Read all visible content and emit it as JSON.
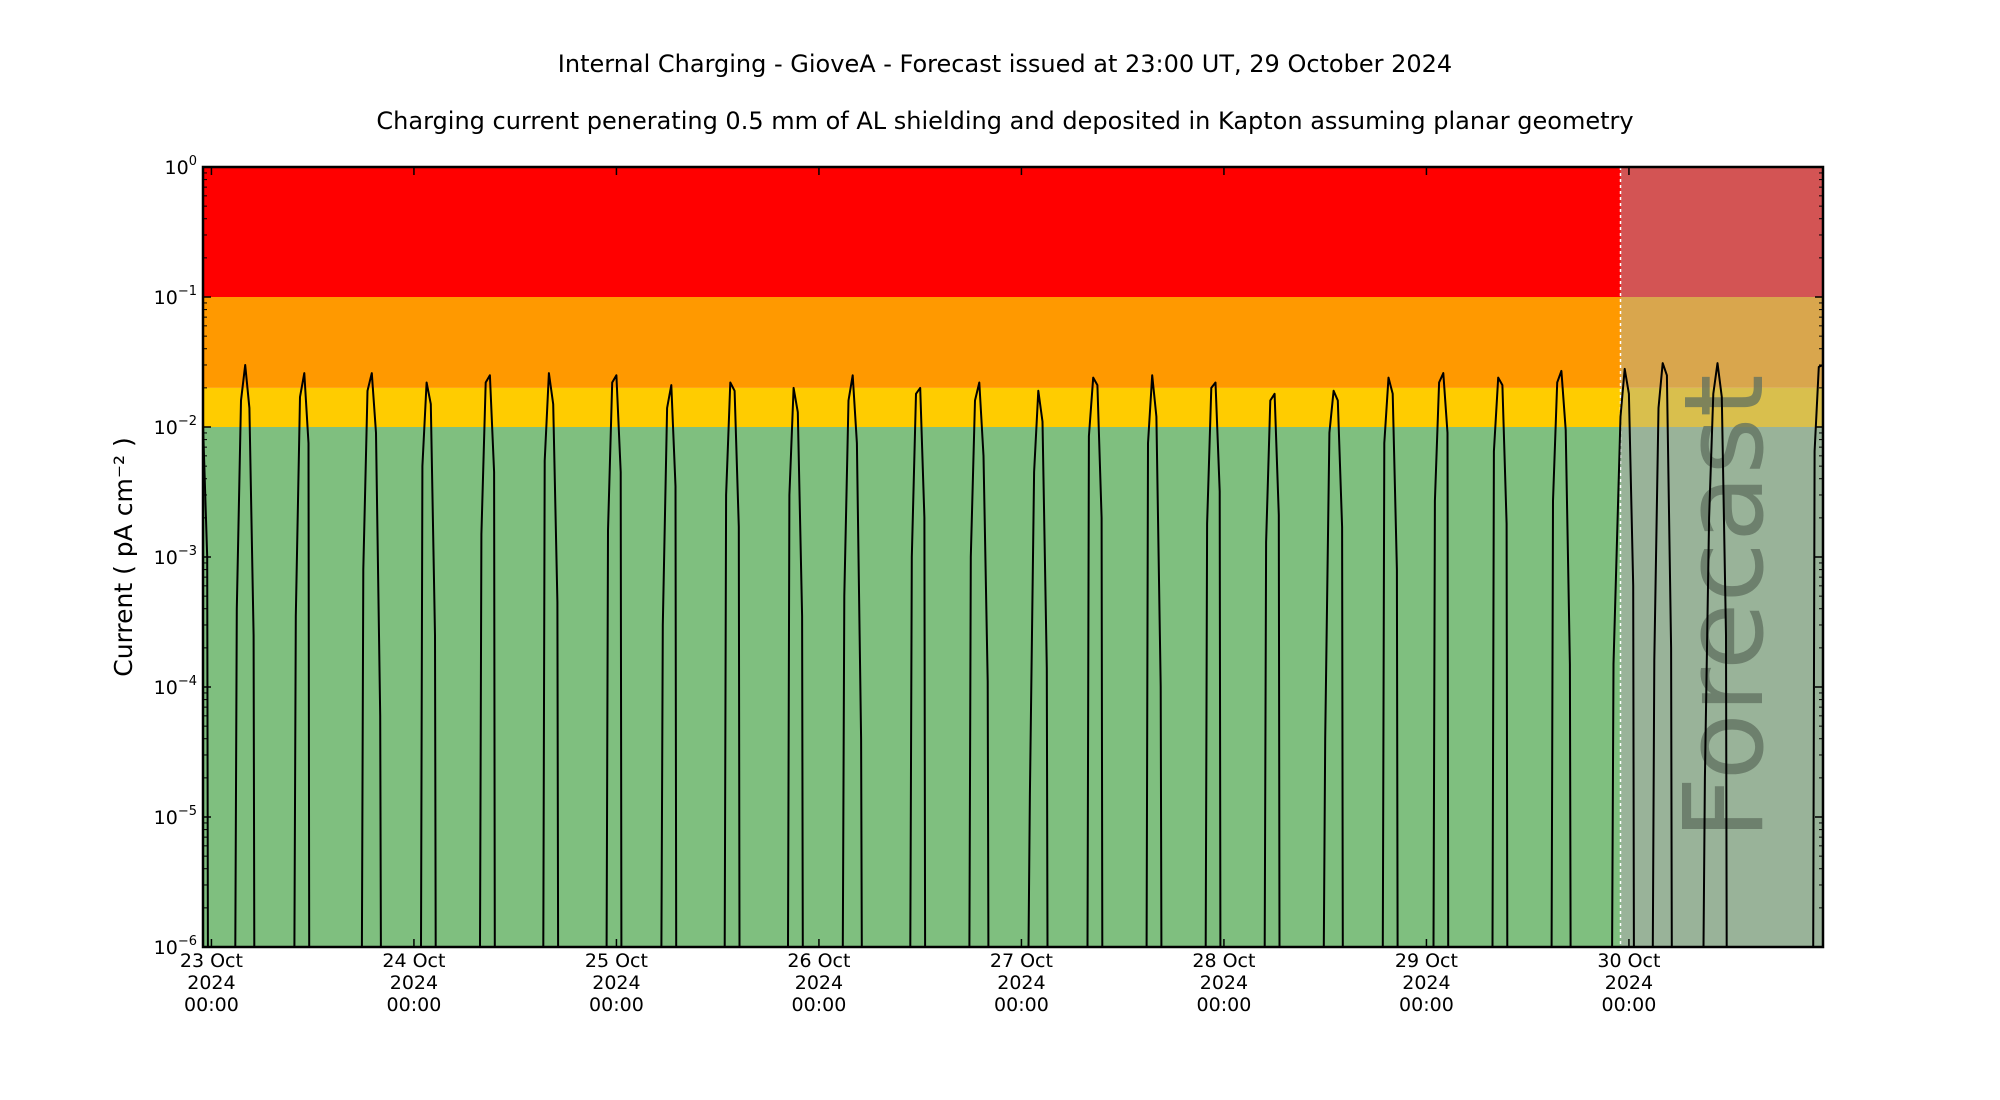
{
  "chart_data": {
    "type": "line",
    "title": "Internal Charging - GioveA - Forecast issued at 23:00 UT, 29 October 2024",
    "subtitle": "Charging current penerating 0.5 mm of AL shielding and deposited in Kapton assuming planar geometry",
    "ylabel": "Current ( pA cm⁻² )",
    "xlabel": "",
    "yscale": "log",
    "ylim": [
      1e-06,
      1
    ],
    "xlim": [
      "2024-10-22T23:00",
      "2024-10-30T23:00"
    ],
    "forecast_start": "2024-10-29T23:00",
    "forecast_text": "Forecast",
    "grid": false,
    "legend": "none",
    "y_ticks": [
      {
        "value": 1e-06,
        "mant": "10",
        "exp": "−6"
      },
      {
        "value": 1e-05,
        "mant": "10",
        "exp": "−5"
      },
      {
        "value": 0.0001,
        "mant": "10",
        "exp": "−4"
      },
      {
        "value": 0.001,
        "mant": "10",
        "exp": "−3"
      },
      {
        "value": 0.01,
        "mant": "10",
        "exp": "−2"
      },
      {
        "value": 0.1,
        "mant": "10",
        "exp": "−1"
      },
      {
        "value": 1,
        "mant": "10",
        "exp": "0"
      }
    ],
    "x_ticks": [
      {
        "at": "2024-10-23T00:00",
        "lines": [
          "23 Oct",
          "2024",
          "00:00"
        ]
      },
      {
        "at": "2024-10-24T00:00",
        "lines": [
          "24 Oct",
          "2024",
          "00:00"
        ]
      },
      {
        "at": "2024-10-25T00:00",
        "lines": [
          "25 Oct",
          "2024",
          "00:00"
        ]
      },
      {
        "at": "2024-10-26T00:00",
        "lines": [
          "26 Oct",
          "2024",
          "00:00"
        ]
      },
      {
        "at": "2024-10-27T00:00",
        "lines": [
          "27 Oct",
          "2024",
          "00:00"
        ]
      },
      {
        "at": "2024-10-28T00:00",
        "lines": [
          "28 Oct",
          "2024",
          "00:00"
        ]
      },
      {
        "at": "2024-10-29T00:00",
        "lines": [
          "29 Oct",
          "2024",
          "00:00"
        ]
      },
      {
        "at": "2024-10-30T00:00",
        "lines": [
          "30 Oct",
          "2024",
          "00:00"
        ]
      }
    ],
    "bands": [
      {
        "from": 1e-06,
        "to": 0.01,
        "color": "#7fbf7f",
        "forecast_color": "#99b399"
      },
      {
        "from": 0.01,
        "to": 0.02,
        "color": "#ffcc00",
        "forecast_color": "#d9bf4d"
      },
      {
        "from": 0.02,
        "to": 0.1,
        "color": "#ff9900",
        "forecast_color": "#d9a64d"
      },
      {
        "from": 0.1,
        "to": 1,
        "color": "#ff0000",
        "forecast_color": "#d35454"
      }
    ],
    "series": [
      {
        "color": "#000000",
        "points": [
          [
            "2024-10-22T23:00",
            0.0105
          ],
          [
            "2024-10-22T23:30",
            0.001
          ],
          [
            "2024-10-22T23:35",
            1e-06
          ],
          [
            "2024-10-23T02:50",
            1e-06
          ],
          [
            "2024-10-23T03:00",
            0.0004
          ],
          [
            "2024-10-23T03:30",
            0.016
          ],
          [
            "2024-10-23T04:00",
            0.03
          ],
          [
            "2024-10-23T04:30",
            0.014
          ],
          [
            "2024-10-23T05:00",
            0.00025
          ],
          [
            "2024-10-23T05:05",
            1e-06
          ],
          [
            "2024-10-23T09:50",
            1e-06
          ],
          [
            "2024-10-23T10:00",
            0.00035
          ],
          [
            "2024-10-23T10:30",
            0.017
          ],
          [
            "2024-10-23T11:00",
            0.026
          ],
          [
            "2024-10-23T11:30",
            0.0075
          ],
          [
            "2024-10-23T11:35",
            1e-06
          ],
          [
            "2024-10-23T17:50",
            1e-06
          ],
          [
            "2024-10-23T18:00",
            0.0008
          ],
          [
            "2024-10-23T18:30",
            0.019
          ],
          [
            "2024-10-23T19:00",
            0.026
          ],
          [
            "2024-10-23T19:30",
            0.009
          ],
          [
            "2024-10-23T20:00",
            6e-05
          ],
          [
            "2024-10-23T20:05",
            1e-06
          ],
          [
            "2024-10-24T00:50",
            1e-06
          ],
          [
            "2024-10-24T01:00",
            0.005
          ],
          [
            "2024-10-24T01:30",
            0.022
          ],
          [
            "2024-10-24T02:00",
            0.015
          ],
          [
            "2024-10-24T02:30",
            0.00025
          ],
          [
            "2024-10-24T02:35",
            1e-06
          ],
          [
            "2024-10-24T07:50",
            1e-06
          ],
          [
            "2024-10-24T08:00",
            0.0015
          ],
          [
            "2024-10-24T08:30",
            0.022
          ],
          [
            "2024-10-24T09:00",
            0.025
          ],
          [
            "2024-10-24T09:30",
            0.0045
          ],
          [
            "2024-10-24T09:35",
            1e-06
          ],
          [
            "2024-10-24T15:20",
            1e-06
          ],
          [
            "2024-10-24T15:30",
            0.0055
          ],
          [
            "2024-10-24T16:00",
            0.026
          ],
          [
            "2024-10-24T16:30",
            0.015
          ],
          [
            "2024-10-24T17:00",
            0.00045
          ],
          [
            "2024-10-24T17:05",
            1e-06
          ],
          [
            "2024-10-24T22:50",
            1e-06
          ],
          [
            "2024-10-24T23:00",
            0.0016
          ],
          [
            "2024-10-24T23:30",
            0.022
          ],
          [
            "2024-10-25T00:00",
            0.025
          ],
          [
            "2024-10-25T00:30",
            0.0045
          ],
          [
            "2024-10-25T00:35",
            1e-06
          ],
          [
            "2024-10-25T05:20",
            1e-06
          ],
          [
            "2024-10-25T05:30",
            0.0003
          ],
          [
            "2024-10-25T06:00",
            0.014
          ],
          [
            "2024-10-25T06:30",
            0.021
          ],
          [
            "2024-10-25T07:00",
            0.0035
          ],
          [
            "2024-10-25T07:05",
            1e-06
          ],
          [
            "2024-10-25T12:50",
            1e-06
          ],
          [
            "2024-10-25T13:00",
            0.003
          ],
          [
            "2024-10-25T13:30",
            0.022
          ],
          [
            "2024-10-25T14:00",
            0.019
          ],
          [
            "2024-10-25T14:30",
            0.0017
          ],
          [
            "2024-10-25T14:35",
            1e-06
          ],
          [
            "2024-10-25T20:20",
            1e-06
          ],
          [
            "2024-10-25T20:30",
            0.003
          ],
          [
            "2024-10-25T21:00",
            0.02
          ],
          [
            "2024-10-25T21:30",
            0.013
          ],
          [
            "2024-10-25T22:00",
            0.00035
          ],
          [
            "2024-10-25T22:05",
            1e-06
          ],
          [
            "2024-10-26T02:50",
            1e-06
          ],
          [
            "2024-10-26T03:00",
            0.0005
          ],
          [
            "2024-10-26T03:30",
            0.016
          ],
          [
            "2024-10-26T04:00",
            0.025
          ],
          [
            "2024-10-26T04:30",
            0.0075
          ],
          [
            "2024-10-26T05:00",
            4e-05
          ],
          [
            "2024-10-26T05:05",
            1e-06
          ],
          [
            "2024-10-26T10:50",
            1e-06
          ],
          [
            "2024-10-26T11:00",
            0.001
          ],
          [
            "2024-10-26T11:30",
            0.018
          ],
          [
            "2024-10-26T12:00",
            0.02
          ],
          [
            "2024-10-26T12:30",
            0.002
          ],
          [
            "2024-10-26T12:35",
            1e-06
          ],
          [
            "2024-10-26T17:50",
            1e-06
          ],
          [
            "2024-10-26T18:00",
            0.001
          ],
          [
            "2024-10-26T18:30",
            0.016
          ],
          [
            "2024-10-26T19:00",
            0.022
          ],
          [
            "2024-10-26T19:30",
            0.006
          ],
          [
            "2024-10-26T20:00",
            0.00011
          ],
          [
            "2024-10-26T20:05",
            1e-06
          ],
          [
            "2024-10-27T00:50",
            1e-06
          ],
          [
            "2024-10-27T01:00",
            1.5e-05
          ],
          [
            "2024-10-27T01:30",
            0.0045
          ],
          [
            "2024-10-27T02:00",
            0.019
          ],
          [
            "2024-10-27T02:30",
            0.011
          ],
          [
            "2024-10-27T03:00",
            0.00014
          ],
          [
            "2024-10-27T03:05",
            1e-06
          ],
          [
            "2024-10-27T07:50",
            1e-06
          ],
          [
            "2024-10-27T08:00",
            0.0085
          ],
          [
            "2024-10-27T08:30",
            0.024
          ],
          [
            "2024-10-27T09:00",
            0.021
          ],
          [
            "2024-10-27T09:30",
            0.002
          ],
          [
            "2024-10-27T09:35",
            1e-06
          ],
          [
            "2024-10-27T14:50",
            1e-06
          ],
          [
            "2024-10-27T15:00",
            0.0075
          ],
          [
            "2024-10-27T15:30",
            0.025
          ],
          [
            "2024-10-27T16:00",
            0.012
          ],
          [
            "2024-10-27T16:30",
            0.0001
          ],
          [
            "2024-10-27T16:35",
            1e-06
          ],
          [
            "2024-10-27T21:50",
            1e-06
          ],
          [
            "2024-10-27T22:00",
            0.0018
          ],
          [
            "2024-10-27T22:30",
            0.02
          ],
          [
            "2024-10-27T23:00",
            0.022
          ],
          [
            "2024-10-27T23:30",
            0.0032
          ],
          [
            "2024-10-27T23:35",
            1e-06
          ],
          [
            "2024-10-28T04:50",
            1e-06
          ],
          [
            "2024-10-28T05:00",
            0.0013
          ],
          [
            "2024-10-28T05:30",
            0.016
          ],
          [
            "2024-10-28T06:00",
            0.018
          ],
          [
            "2024-10-28T06:30",
            0.0021
          ],
          [
            "2024-10-28T06:35",
            1e-06
          ],
          [
            "2024-10-28T11:50",
            1e-06
          ],
          [
            "2024-10-28T12:00",
            4e-05
          ],
          [
            "2024-10-28T12:30",
            0.009
          ],
          [
            "2024-10-28T13:00",
            0.019
          ],
          [
            "2024-10-28T13:30",
            0.016
          ],
          [
            "2024-10-28T14:00",
            0.0017
          ],
          [
            "2024-10-28T14:05",
            1e-06
          ],
          [
            "2024-10-28T18:50",
            1e-06
          ],
          [
            "2024-10-28T19:00",
            0.0075
          ],
          [
            "2024-10-28T19:30",
            0.024
          ],
          [
            "2024-10-28T20:00",
            0.018
          ],
          [
            "2024-10-28T20:30",
            0.0008
          ],
          [
            "2024-10-28T20:35",
            1e-06
          ],
          [
            "2024-10-29T00:50",
            1e-06
          ],
          [
            "2024-10-29T01:00",
            0.0027
          ],
          [
            "2024-10-29T01:30",
            0.022
          ],
          [
            "2024-10-29T02:00",
            0.026
          ],
          [
            "2024-10-29T02:30",
            0.009
          ],
          [
            "2024-10-29T02:35",
            1e-06
          ],
          [
            "2024-10-29T07:50",
            1e-06
          ],
          [
            "2024-10-29T08:00",
            0.0065
          ],
          [
            "2024-10-29T08:30",
            0.024
          ],
          [
            "2024-10-29T09:00",
            0.021
          ],
          [
            "2024-10-29T09:30",
            0.0018
          ],
          [
            "2024-10-29T09:35",
            1e-06
          ],
          [
            "2024-10-29T14:50",
            1e-06
          ],
          [
            "2024-10-29T15:00",
            0.0027
          ],
          [
            "2024-10-29T15:30",
            0.022
          ],
          [
            "2024-10-29T16:00",
            0.027
          ],
          [
            "2024-10-29T16:30",
            0.0095
          ],
          [
            "2024-10-29T17:00",
            0.00015
          ],
          [
            "2024-10-29T17:05",
            1e-06
          ],
          [
            "2024-10-29T22:00",
            1e-06
          ],
          [
            "2024-10-29T22:10",
            0.00015
          ],
          [
            "2024-10-29T23:00",
            0.012
          ],
          [
            "2024-10-29T23:30",
            0.028
          ],
          [
            "2024-10-30T00:00",
            0.018
          ],
          [
            "2024-10-30T00:30",
            0.0006
          ],
          [
            "2024-10-30T00:35",
            1e-06
          ],
          [
            "2024-10-30T02:50",
            1e-06
          ],
          [
            "2024-10-30T03:00",
            0.00016
          ],
          [
            "2024-10-30T03:30",
            0.014
          ],
          [
            "2024-10-30T04:00",
            0.031
          ],
          [
            "2024-10-30T04:30",
            0.025
          ],
          [
            "2024-10-30T05:00",
            0.0002
          ],
          [
            "2024-10-30T05:05",
            1e-06
          ],
          [
            "2024-10-30T08:50",
            1e-06
          ],
          [
            "2024-10-30T09:00",
            2e-05
          ],
          [
            "2024-10-30T09:30",
            0.002
          ],
          [
            "2024-10-30T10:00",
            0.018
          ],
          [
            "2024-10-30T10:30",
            0.031
          ],
          [
            "2024-10-30T11:00",
            0.017
          ],
          [
            "2024-10-30T11:30",
            0.00025
          ],
          [
            "2024-10-30T11:35",
            1e-06
          ],
          [
            "2024-10-30T21:50",
            1e-06
          ],
          [
            "2024-10-30T22:00",
            0.0065
          ],
          [
            "2024-10-30T22:30",
            0.029
          ],
          [
            "2024-10-30T23:00",
            0.03
          ]
        ]
      }
    ]
  }
}
